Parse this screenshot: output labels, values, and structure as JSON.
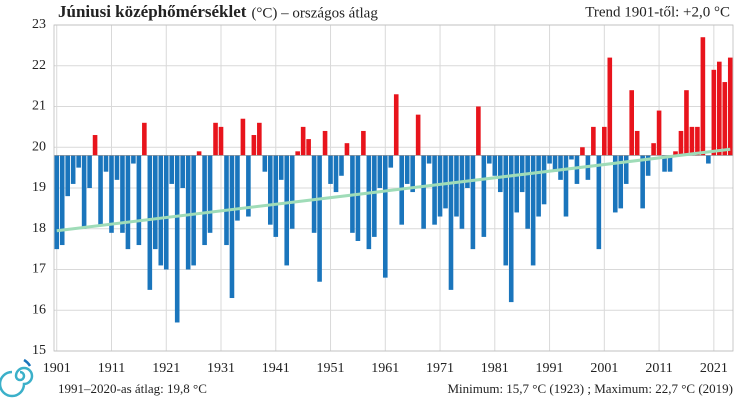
{
  "chart_data": {
    "type": "bar",
    "title": "Júniusi középhőmérséklet",
    "subtitle": "(°C) – országos átlag",
    "trend_label": "Trend 1901-től: +2,0 °C",
    "footer_left": "1991–2020-as átlag: 19,8 °C",
    "footer_right": "Minimum:  15,7 °C (1923) ; Maximum:  22,7 °C (2019)",
    "baseline": 19.8,
    "color_above": "#e8141c",
    "color_below": "#1a75bc",
    "trend_color": "#9fdcb8",
    "x": [
      1901,
      1902,
      1903,
      1904,
      1905,
      1906,
      1907,
      1908,
      1909,
      1910,
      1911,
      1912,
      1913,
      1914,
      1915,
      1916,
      1917,
      1918,
      1919,
      1920,
      1921,
      1922,
      1923,
      1924,
      1925,
      1926,
      1927,
      1928,
      1929,
      1930,
      1931,
      1932,
      1933,
      1934,
      1935,
      1936,
      1937,
      1938,
      1939,
      1940,
      1941,
      1942,
      1943,
      1944,
      1945,
      1946,
      1947,
      1948,
      1949,
      1950,
      1951,
      1952,
      1953,
      1954,
      1955,
      1956,
      1957,
      1958,
      1959,
      1960,
      1961,
      1962,
      1963,
      1964,
      1965,
      1966,
      1967,
      1968,
      1969,
      1970,
      1971,
      1972,
      1973,
      1974,
      1975,
      1976,
      1977,
      1978,
      1979,
      1980,
      1981,
      1982,
      1983,
      1984,
      1985,
      1986,
      1987,
      1988,
      1989,
      1990,
      1991,
      1992,
      1993,
      1994,
      1995,
      1996,
      1997,
      1998,
      1999,
      2000,
      2001,
      2002,
      2003,
      2004,
      2005,
      2006,
      2007,
      2008,
      2009,
      2010,
      2011,
      2012,
      2013,
      2014,
      2015,
      2016,
      2017,
      2018,
      2019,
      2020,
      2021,
      2022,
      2023,
      2024
    ],
    "values": [
      17.5,
      17.6,
      18.8,
      19.1,
      19.5,
      18.0,
      19.0,
      20.3,
      18.1,
      19.4,
      17.9,
      19.2,
      17.9,
      17.5,
      19.6,
      17.6,
      20.6,
      16.5,
      17.5,
      17.1,
      17.0,
      19.1,
      15.7,
      19.0,
      17.0,
      17.1,
      19.9,
      17.6,
      17.9,
      20.6,
      20.5,
      17.6,
      16.3,
      18.2,
      20.7,
      18.3,
      20.3,
      20.6,
      19.4,
      18.1,
      17.8,
      19.2,
      17.1,
      18.0,
      19.9,
      20.5,
      20.2,
      17.9,
      16.7,
      20.4,
      19.1,
      18.9,
      19.3,
      20.1,
      17.9,
      17.7,
      20.4,
      17.5,
      17.8,
      19.0,
      16.8,
      19.5,
      21.3,
      18.1,
      19.1,
      18.9,
      20.8,
      18.0,
      19.6,
      18.1,
      18.3,
      18.5,
      16.5,
      18.3,
      18.0,
      19.0,
      17.5,
      21.0,
      17.8,
      19.6,
      19.3,
      18.9,
      17.1,
      16.2,
      18.4,
      18.9,
      18.0,
      17.1,
      18.3,
      18.6,
      19.6,
      19.4,
      19.2,
      18.3,
      19.7,
      19.1,
      20.0,
      19.2,
      20.5,
      17.5,
      20.5,
      22.2,
      18.4,
      18.5,
      19.1,
      21.4,
      20.4,
      18.5,
      19.3,
      20.1,
      20.9,
      19.4,
      19.4,
      19.9,
      20.4,
      21.4,
      20.5,
      20.5,
      22.7,
      19.6,
      21.9,
      22.1,
      21.6,
      22.2
    ],
    "trend": {
      "x": [
        1901,
        2024
      ],
      "values": [
        17.95,
        19.95
      ]
    },
    "xlim": [
      1900.5,
      2024.5
    ],
    "xticks": [
      1901,
      1911,
      1921,
      1931,
      1941,
      1951,
      1961,
      1971,
      1981,
      1991,
      2001,
      2011,
      2021
    ],
    "ylim": [
      15,
      23
    ],
    "yticks": [
      15,
      16,
      17,
      18,
      19,
      20,
      21,
      22,
      23
    ],
    "grid": true
  }
}
